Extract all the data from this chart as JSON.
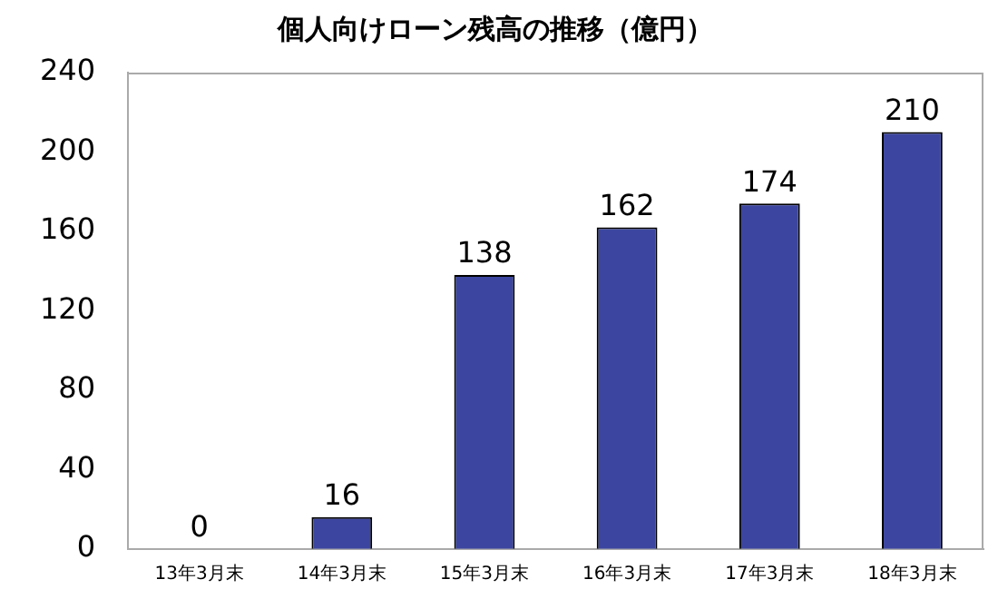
{
  "chart_data": {
    "type": "bar",
    "title": "個人向けローン残高の推移（億円）",
    "categories": [
      "13年3月末",
      "14年3月末",
      "15年3月末",
      "16年3月末",
      "17年3月末",
      "18年3月末"
    ],
    "values": [
      0,
      16,
      138,
      162,
      174,
      210
    ],
    "color": "#3c46a0",
    "ylim": [
      0,
      240
    ],
    "yticks": [
      0,
      40,
      80,
      120,
      160,
      200,
      240
    ],
    "grid": false,
    "legend": false,
    "data_labels": true
  }
}
